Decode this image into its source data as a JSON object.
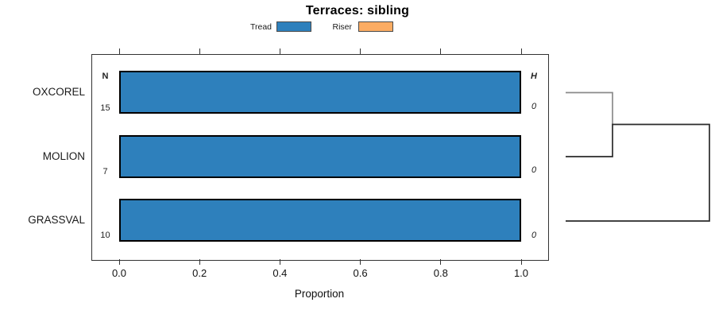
{
  "title": "Terraces: sibling",
  "legend": {
    "items": [
      {
        "label": "Tread",
        "color": "#2E80BC"
      },
      {
        "label": "Riser",
        "color": "#FBAC63"
      }
    ]
  },
  "table": {
    "n_header": "N",
    "h_header": "H"
  },
  "axis": {
    "xlabel": "Proportion",
    "ticks": [
      "0.0",
      "0.2",
      "0.4",
      "0.6",
      "0.8",
      "1.0"
    ]
  },
  "rows": [
    {
      "label": "OXCOREL",
      "n": "15",
      "h": "0"
    },
    {
      "label": "MOLION",
      "n": "7",
      "h": "0"
    },
    {
      "label": "GRASSVAL",
      "n": "10",
      "h": "0"
    }
  ],
  "chart_data": {
    "type": "bar",
    "orientation": "horizontal",
    "stacked": true,
    "title": "Terraces: sibling",
    "xlabel": "Proportion",
    "xlim": [
      0,
      1.0
    ],
    "grid": false,
    "legend_position": "top",
    "categories": [
      "OXCOREL",
      "MOLION",
      "GRASSVAL"
    ],
    "series": [
      {
        "name": "Tread",
        "color": "#2E80BC",
        "values": [
          1.0,
          1.0,
          1.0
        ]
      },
      {
        "name": "Riser",
        "color": "#FBAC63",
        "values": [
          0.0,
          0.0,
          0.0
        ]
      }
    ],
    "n_values": [
      15,
      7,
      10
    ],
    "h_values": [
      0,
      0,
      0
    ],
    "dendrogram": {
      "description": "right-side cluster tree",
      "merges": [
        {
          "join": [
            "OXCOREL",
            "MOLION"
          ]
        },
        {
          "join": [
            "OXCOREL+MOLION",
            "GRASSVAL"
          ]
        }
      ]
    }
  }
}
